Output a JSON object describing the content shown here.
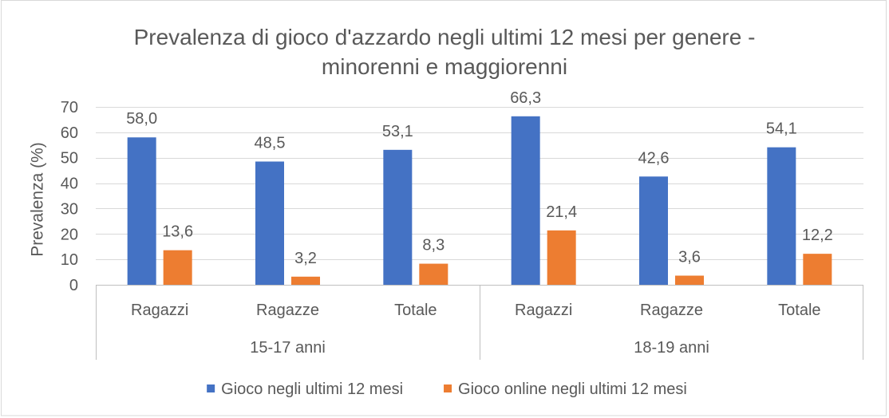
{
  "chart_data": {
    "type": "bar",
    "title": "Prevalenza di gioco d'azzardo negli ultimi 12 mesi per genere -\nminorenni e maggiorenni",
    "xlabel": "",
    "ylabel": "Prevalenza (%)",
    "ylim": [
      0,
      70
    ],
    "yticks": [
      0,
      10,
      20,
      30,
      40,
      50,
      60,
      70
    ],
    "grid": true,
    "legend": "bottom",
    "groups": [
      {
        "label": "15-17 anni",
        "categories": [
          "Ragazzi",
          "Ragazze",
          "Totale"
        ]
      },
      {
        "label": "18-19 anni",
        "categories": [
          "Ragazzi",
          "Ragazze",
          "Totale"
        ]
      }
    ],
    "series": [
      {
        "name": "Gioco negli ultimi 12 mesi",
        "color": "#4472C4",
        "values": [
          58.0,
          48.5,
          53.1,
          66.3,
          42.6,
          54.1
        ],
        "data_labels": [
          "58,0",
          "48,5",
          "53,1",
          "66,3",
          "42,6",
          "54,1"
        ]
      },
      {
        "name": "Gioco online negli ultimi 12 mesi",
        "color": "#ED7D31",
        "values": [
          13.6,
          3.2,
          8.3,
          21.4,
          3.6,
          12.2
        ],
        "data_labels": [
          "13,6",
          "3,2",
          "8,3",
          "21,4",
          "3,6",
          "12,2"
        ]
      }
    ]
  }
}
